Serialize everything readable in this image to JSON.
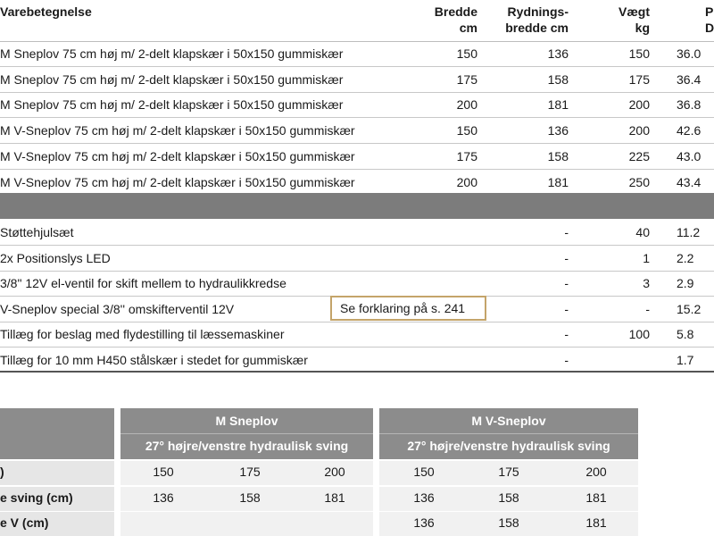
{
  "table1": {
    "header": [
      [
        "Varebetegnelse"
      ],
      [
        "Bredde",
        "cm"
      ],
      [
        "Rydnings-",
        "bredde cm"
      ],
      [
        "Vægt",
        "kg"
      ],
      [
        "P",
        "D"
      ]
    ],
    "products": [
      [
        "M Sneplov 75 cm høj m/ 2-delt klapskær i 50x150 gummiskær",
        150,
        136,
        150,
        "36.0"
      ],
      [
        "M Sneplov 75 cm høj m/ 2-delt klapskær i 50x150 gummiskær",
        175,
        158,
        175,
        "36.4"
      ],
      [
        "M Sneplov 75 cm høj m/ 2-delt klapskær i 50x150 gummiskær",
        200,
        181,
        200,
        "36.8"
      ],
      [
        "M V-Sneplov 75 cm høj m/ 2-delt klapskær i 50x150 gummiskær",
        150,
        136,
        200,
        "42.6"
      ],
      [
        "M V-Sneplov 75 cm høj m/ 2-delt klapskær i 50x150 gummiskær",
        175,
        158,
        225,
        "43.0"
      ],
      [
        "M V-Sneplov 75 cm høj m/ 2-delt klapskær i 50x150 gummiskær",
        200,
        181,
        250,
        "43.4"
      ]
    ],
    "accessories": [
      [
        "Støttehjulsæt",
        "-",
        40,
        "11.2"
      ],
      [
        "2x Positionslys LED",
        "-",
        1,
        "2.2"
      ],
      [
        "3/8\" 12V el-ventil for skift mellem to hydraulikkredse",
        "-",
        3,
        "2.9"
      ],
      [
        "V-Sneplov special 3/8'' omskifterventil 12V",
        "-",
        "-",
        "15.2"
      ],
      [
        "Tillæg for beslag med flydestilling til læssemaskiner",
        "-",
        100,
        "5.8"
      ],
      [
        "Tillæg for 10 mm H450 stålskær i stedet for gummiskær",
        "-",
        "1.7"
      ]
    ],
    "note": "Se forklaring på s. 241"
  },
  "table2": {
    "groups": [
      {
        "title": "M Sneplov",
        "subtitle": "27° højre/venstre hydraulisk sving"
      },
      {
        "title": "M V-Sneplov",
        "subtitle": "27° højre/venstre hydraulisk sving"
      }
    ],
    "rows": [
      {
        "label": ")",
        "values": [
          150,
          175,
          200,
          150,
          175,
          200
        ]
      },
      {
        "label": "e sving (cm)",
        "values": [
          136,
          158,
          181,
          136,
          158,
          181
        ]
      },
      {
        "label": "e V (cm)",
        "values": [
          null,
          null,
          null,
          136,
          158,
          181
        ]
      }
    ]
  }
}
